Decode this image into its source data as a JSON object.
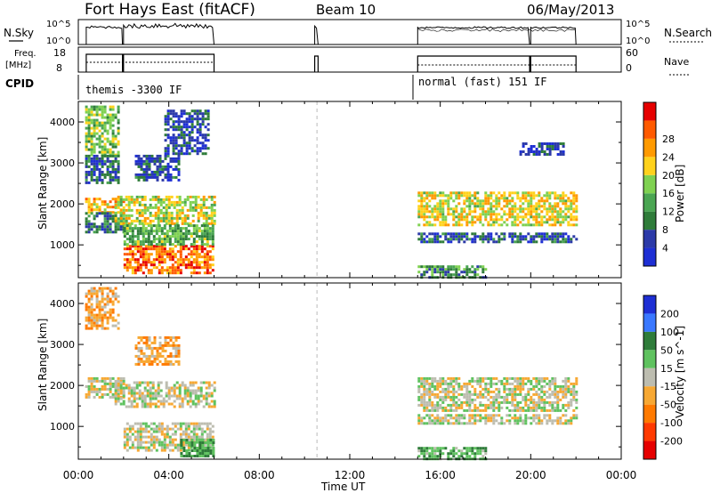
{
  "header": {
    "station": "Fort Hays East (fitACF)",
    "beam": "Beam 10",
    "date": "06/May/2013"
  },
  "strip_labels": {
    "nsky": "N.Sky",
    "nsky_ticks": [
      "10^5",
      "10^0"
    ],
    "nsearch": "N.Search",
    "nsearch_ticks": [
      "10^5",
      "10^0"
    ],
    "freq_line1": "Freq.",
    "freq_line2": "[MHz]",
    "freq_ticks": [
      "18",
      "8"
    ],
    "nave": "Nave",
    "nave_ticks": [
      "60",
      "0"
    ],
    "cpid": "CPID"
  },
  "cpid_modes": [
    {
      "label": "themis -3300 IF",
      "start_hour": 0.0
    },
    {
      "label": "normal (fast) 151 IF",
      "start_hour": 15.0
    }
  ],
  "colors": {
    "power": [
      "#1e2fd4",
      "#2c3aa8",
      "#2f7c3a",
      "#4aa552",
      "#7fd151",
      "#ffd21c",
      "#ff9a00",
      "#ff5a00",
      "#e60000"
    ],
    "velocity": [
      "#1e2fd4",
      "#3a78ff",
      "#2f7c3a",
      "#5fc25f",
      "#bdbdb0",
      "#f7a833",
      "#ff7a00",
      "#ff3a00",
      "#e60000"
    ]
  },
  "chart_data": [
    {
      "type": "heatmap",
      "title": "Power",
      "xlabel": "Time UT",
      "ylabel": "Slant Range [km]",
      "xlim_hours": [
        0,
        24
      ],
      "ylim": [
        200,
        4500
      ],
      "x_ticks": [
        "00:00",
        "04:00",
        "08:00",
        "12:00",
        "16:00",
        "20:00",
        "00:00"
      ],
      "y_ticks": [
        1000,
        2000,
        3000,
        4000
      ],
      "colorbar": {
        "label": "Power [dB]",
        "ticks": [
          "4",
          "8",
          "12",
          "16",
          "20",
          "24",
          "28"
        ],
        "range": [
          0,
          30
        ]
      },
      "regions": [
        {
          "t0": 0.3,
          "t1": 1.8,
          "r0": 3200,
          "r1": 4400,
          "level": 14
        },
        {
          "t0": 0.3,
          "t1": 1.8,
          "r0": 2500,
          "r1": 3200,
          "level": 6
        },
        {
          "t0": 0.3,
          "t1": 2.0,
          "r0": 1800,
          "r1": 2150,
          "level": 20
        },
        {
          "t0": 0.3,
          "t1": 2.0,
          "r0": 1300,
          "r1": 1800,
          "level": 8
        },
        {
          "t0": 1.6,
          "t1": 6.0,
          "r0": 1500,
          "r1": 2200,
          "level": 17
        },
        {
          "t0": 2.0,
          "t1": 6.0,
          "r0": 300,
          "r1": 1000,
          "level": 24
        },
        {
          "t0": 2.0,
          "t1": 6.0,
          "r0": 1000,
          "r1": 1500,
          "level": 12
        },
        {
          "t0": 2.5,
          "t1": 4.5,
          "r0": 2600,
          "r1": 3200,
          "level": 6
        },
        {
          "t0": 3.8,
          "t1": 5.8,
          "r0": 3200,
          "r1": 4300,
          "level": 5
        },
        {
          "t0": 15.0,
          "t1": 22.0,
          "r0": 1500,
          "r1": 2300,
          "level": 18
        },
        {
          "t0": 15.0,
          "t1": 22.0,
          "r0": 1100,
          "r1": 1300,
          "level": 6
        },
        {
          "t0": 15.0,
          "t1": 18.0,
          "r0": 200,
          "r1": 500,
          "level": 10
        },
        {
          "t0": 19.5,
          "t1": 21.5,
          "r0": 3200,
          "r1": 3500,
          "level": 4
        }
      ]
    },
    {
      "type": "heatmap",
      "title": "Velocity",
      "xlabel": "Time UT",
      "ylabel": "Slant Range [km]",
      "xlim_hours": [
        0,
        24
      ],
      "ylim": [
        200,
        4500
      ],
      "x_ticks": [
        "00:00",
        "04:00",
        "08:00",
        "12:00",
        "16:00",
        "20:00",
        "00:00"
      ],
      "y_ticks": [
        1000,
        2000,
        3000,
        4000
      ],
      "colorbar": {
        "label": "Velocity [m s^-1]",
        "ticks": [
          "200",
          "100",
          "50",
          "15",
          "-15",
          "-50",
          "-100",
          "-200"
        ]
      },
      "regions": [
        {
          "t0": 0.3,
          "t1": 1.8,
          "r0": 3400,
          "r1": 4400,
          "v": -40
        },
        {
          "t0": 0.3,
          "t1": 2.0,
          "r0": 1700,
          "r1": 2200,
          "v": 0
        },
        {
          "t0": 1.6,
          "t1": 6.0,
          "r0": 1500,
          "r1": 2100,
          "v": 0
        },
        {
          "t0": 2.0,
          "t1": 6.0,
          "r0": 400,
          "r1": 1100,
          "v": 0
        },
        {
          "t0": 4.5,
          "t1": 6.0,
          "r0": 300,
          "r1": 700,
          "v": 50
        },
        {
          "t0": 2.5,
          "t1": 4.5,
          "r0": 2500,
          "r1": 3200,
          "v": -40
        },
        {
          "t0": 15.0,
          "t1": 22.0,
          "r0": 1400,
          "r1": 2200,
          "v": 0
        },
        {
          "t0": 15.0,
          "t1": 22.0,
          "r0": 1100,
          "r1": 1300,
          "v": 0
        },
        {
          "t0": 15.0,
          "t1": 18.0,
          "r0": 200,
          "r1": 500,
          "v": 40
        }
      ]
    }
  ]
}
